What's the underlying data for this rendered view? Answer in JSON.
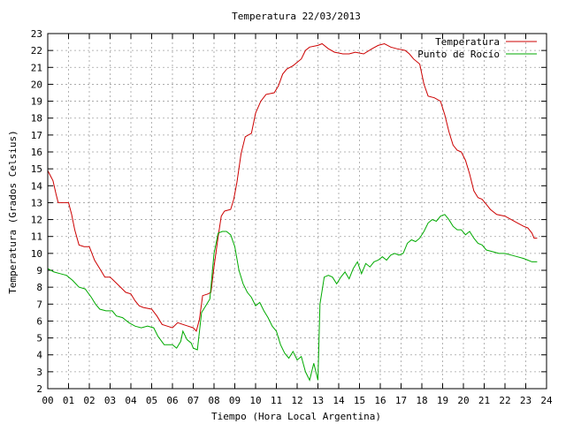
{
  "chart_data": {
    "type": "line",
    "title": "Temperatura 22/03/2013",
    "xlabel": "Tiempo (Hora Local Argentina)",
    "ylabel": "Temperatura (Grados Celsius)",
    "xlim": [
      0,
      24
    ],
    "ylim": [
      2,
      23
    ],
    "x_ticks": [
      "00",
      "01",
      "02",
      "03",
      "04",
      "05",
      "06",
      "07",
      "08",
      "09",
      "10",
      "11",
      "12",
      "13",
      "14",
      "15",
      "16",
      "17",
      "18",
      "19",
      "20",
      "21",
      "22",
      "23",
      "24"
    ],
    "y_ticks": [
      "2",
      "3",
      "4",
      "5",
      "6",
      "7",
      "8",
      "9",
      "10",
      "11",
      "12",
      "13",
      "14",
      "15",
      "16",
      "17",
      "18",
      "19",
      "20",
      "21",
      "22",
      "23"
    ],
    "grid": true,
    "legend_position": "top-right",
    "series": [
      {
        "name": "Temperatura",
        "color": "#cc0000",
        "points": [
          [
            0.0,
            14.9
          ],
          [
            0.25,
            14.3
          ],
          [
            0.4,
            13.5
          ],
          [
            0.5,
            13.0
          ],
          [
            0.75,
            13.0
          ],
          [
            1.0,
            13.0
          ],
          [
            1.15,
            12.3
          ],
          [
            1.3,
            11.4
          ],
          [
            1.5,
            10.5
          ],
          [
            1.75,
            10.4
          ],
          [
            2.0,
            10.4
          ],
          [
            2.25,
            9.6
          ],
          [
            2.5,
            9.1
          ],
          [
            2.75,
            8.6
          ],
          [
            3.0,
            8.6
          ],
          [
            3.25,
            8.3
          ],
          [
            3.5,
            8.0
          ],
          [
            3.75,
            7.7
          ],
          [
            4.0,
            7.6
          ],
          [
            4.2,
            7.2
          ],
          [
            4.4,
            6.9
          ],
          [
            4.6,
            6.8
          ],
          [
            5.0,
            6.7
          ],
          [
            5.25,
            6.3
          ],
          [
            5.5,
            5.8
          ],
          [
            5.75,
            5.7
          ],
          [
            6.0,
            5.6
          ],
          [
            6.25,
            5.9
          ],
          [
            6.5,
            5.8
          ],
          [
            6.75,
            5.7
          ],
          [
            7.0,
            5.6
          ],
          [
            7.15,
            5.4
          ],
          [
            7.3,
            6.1
          ],
          [
            7.45,
            7.5
          ],
          [
            7.7,
            7.6
          ],
          [
            7.85,
            7.7
          ],
          [
            8.0,
            9.2
          ],
          [
            8.2,
            11.0
          ],
          [
            8.35,
            12.2
          ],
          [
            8.5,
            12.5
          ],
          [
            8.8,
            12.6
          ],
          [
            8.95,
            13.2
          ],
          [
            9.1,
            14.2
          ],
          [
            9.3,
            15.9
          ],
          [
            9.5,
            16.9
          ],
          [
            9.8,
            17.1
          ],
          [
            10.0,
            18.3
          ],
          [
            10.25,
            19.0
          ],
          [
            10.5,
            19.4
          ],
          [
            10.9,
            19.5
          ],
          [
            11.1,
            19.9
          ],
          [
            11.3,
            20.6
          ],
          [
            11.5,
            20.9
          ],
          [
            11.8,
            21.1
          ],
          [
            12.2,
            21.5
          ],
          [
            12.4,
            22.0
          ],
          [
            12.6,
            22.2
          ],
          [
            13.0,
            22.3
          ],
          [
            13.2,
            22.4
          ],
          [
            13.5,
            22.1
          ],
          [
            13.8,
            21.9
          ],
          [
            14.2,
            21.8
          ],
          [
            14.5,
            21.8
          ],
          [
            14.8,
            21.9
          ],
          [
            15.2,
            21.8
          ],
          [
            15.6,
            22.1
          ],
          [
            15.9,
            22.3
          ],
          [
            16.2,
            22.4
          ],
          [
            16.5,
            22.2
          ],
          [
            16.8,
            22.1
          ],
          [
            17.2,
            22.0
          ],
          [
            17.4,
            21.8
          ],
          [
            17.6,
            21.5
          ],
          [
            17.9,
            21.2
          ],
          [
            18.1,
            20.0
          ],
          [
            18.3,
            19.3
          ],
          [
            18.6,
            19.2
          ],
          [
            18.9,
            19.0
          ],
          [
            19.1,
            18.2
          ],
          [
            19.3,
            17.2
          ],
          [
            19.5,
            16.4
          ],
          [
            19.7,
            16.1
          ],
          [
            19.9,
            16.0
          ],
          [
            20.1,
            15.5
          ],
          [
            20.3,
            14.7
          ],
          [
            20.5,
            13.7
          ],
          [
            20.7,
            13.3
          ],
          [
            20.9,
            13.2
          ],
          [
            21.1,
            12.9
          ],
          [
            21.3,
            12.6
          ],
          [
            21.6,
            12.3
          ],
          [
            22.0,
            12.2
          ],
          [
            22.3,
            12.0
          ],
          [
            22.6,
            11.8
          ],
          [
            22.9,
            11.6
          ],
          [
            23.1,
            11.5
          ],
          [
            23.3,
            11.2
          ],
          [
            23.4,
            10.9
          ],
          [
            23.55,
            10.9
          ]
        ]
      },
      {
        "name": "Punto de Rocío",
        "color": "#00aa00",
        "points": [
          [
            0.0,
            9.1
          ],
          [
            0.3,
            8.9
          ],
          [
            0.6,
            8.8
          ],
          [
            0.9,
            8.7
          ],
          [
            1.2,
            8.4
          ],
          [
            1.5,
            8.0
          ],
          [
            1.8,
            7.9
          ],
          [
            2.1,
            7.4
          ],
          [
            2.3,
            7.0
          ],
          [
            2.5,
            6.7
          ],
          [
            2.8,
            6.6
          ],
          [
            3.1,
            6.6
          ],
          [
            3.3,
            6.3
          ],
          [
            3.6,
            6.2
          ],
          [
            3.9,
            5.9
          ],
          [
            4.2,
            5.7
          ],
          [
            4.5,
            5.6
          ],
          [
            4.8,
            5.7
          ],
          [
            5.1,
            5.6
          ],
          [
            5.3,
            5.1
          ],
          [
            5.6,
            4.6
          ],
          [
            6.0,
            4.6
          ],
          [
            6.2,
            4.4
          ],
          [
            6.4,
            4.8
          ],
          [
            6.5,
            5.4
          ],
          [
            6.7,
            4.9
          ],
          [
            6.9,
            4.7
          ],
          [
            7.0,
            4.4
          ],
          [
            7.2,
            4.3
          ],
          [
            7.4,
            6.5
          ],
          [
            7.6,
            6.9
          ],
          [
            7.8,
            7.3
          ],
          [
            8.0,
            10.0
          ],
          [
            8.2,
            11.2
          ],
          [
            8.4,
            11.3
          ],
          [
            8.6,
            11.3
          ],
          [
            8.8,
            11.1
          ],
          [
            9.0,
            10.4
          ],
          [
            9.2,
            9.0
          ],
          [
            9.4,
            8.2
          ],
          [
            9.6,
            7.7
          ],
          [
            9.8,
            7.4
          ],
          [
            10.0,
            6.9
          ],
          [
            10.2,
            7.1
          ],
          [
            10.4,
            6.6
          ],
          [
            10.6,
            6.2
          ],
          [
            10.8,
            5.7
          ],
          [
            11.0,
            5.4
          ],
          [
            11.2,
            4.6
          ],
          [
            11.4,
            4.1
          ],
          [
            11.6,
            3.8
          ],
          [
            11.8,
            4.2
          ],
          [
            12.0,
            3.7
          ],
          [
            12.2,
            3.9
          ],
          [
            12.4,
            3.0
          ],
          [
            12.6,
            2.5
          ],
          [
            12.8,
            3.5
          ],
          [
            13.0,
            2.5
          ],
          [
            13.1,
            7.0
          ],
          [
            13.3,
            8.6
          ],
          [
            13.5,
            8.7
          ],
          [
            13.7,
            8.6
          ],
          [
            13.9,
            8.2
          ],
          [
            14.1,
            8.6
          ],
          [
            14.3,
            8.9
          ],
          [
            14.5,
            8.5
          ],
          [
            14.7,
            9.1
          ],
          [
            14.9,
            9.5
          ],
          [
            15.1,
            8.8
          ],
          [
            15.3,
            9.4
          ],
          [
            15.5,
            9.2
          ],
          [
            15.7,
            9.5
          ],
          [
            15.9,
            9.6
          ],
          [
            16.1,
            9.8
          ],
          [
            16.3,
            9.6
          ],
          [
            16.5,
            9.9
          ],
          [
            16.7,
            10.0
          ],
          [
            16.9,
            9.9
          ],
          [
            17.1,
            10.0
          ],
          [
            17.3,
            10.6
          ],
          [
            17.5,
            10.8
          ],
          [
            17.7,
            10.7
          ],
          [
            17.9,
            10.9
          ],
          [
            18.1,
            11.3
          ],
          [
            18.3,
            11.8
          ],
          [
            18.5,
            12.0
          ],
          [
            18.7,
            11.9
          ],
          [
            18.9,
            12.2
          ],
          [
            19.1,
            12.3
          ],
          [
            19.3,
            12.0
          ],
          [
            19.5,
            11.6
          ],
          [
            19.7,
            11.4
          ],
          [
            19.9,
            11.4
          ],
          [
            20.1,
            11.1
          ],
          [
            20.3,
            11.3
          ],
          [
            20.5,
            10.9
          ],
          [
            20.7,
            10.6
          ],
          [
            20.9,
            10.5
          ],
          [
            21.1,
            10.2
          ],
          [
            21.4,
            10.1
          ],
          [
            21.7,
            10.0
          ],
          [
            22.0,
            10.0
          ],
          [
            22.3,
            9.9
          ],
          [
            22.6,
            9.8
          ],
          [
            22.9,
            9.7
          ],
          [
            23.1,
            9.6
          ],
          [
            23.3,
            9.5
          ],
          [
            23.55,
            9.5
          ]
        ]
      }
    ]
  }
}
